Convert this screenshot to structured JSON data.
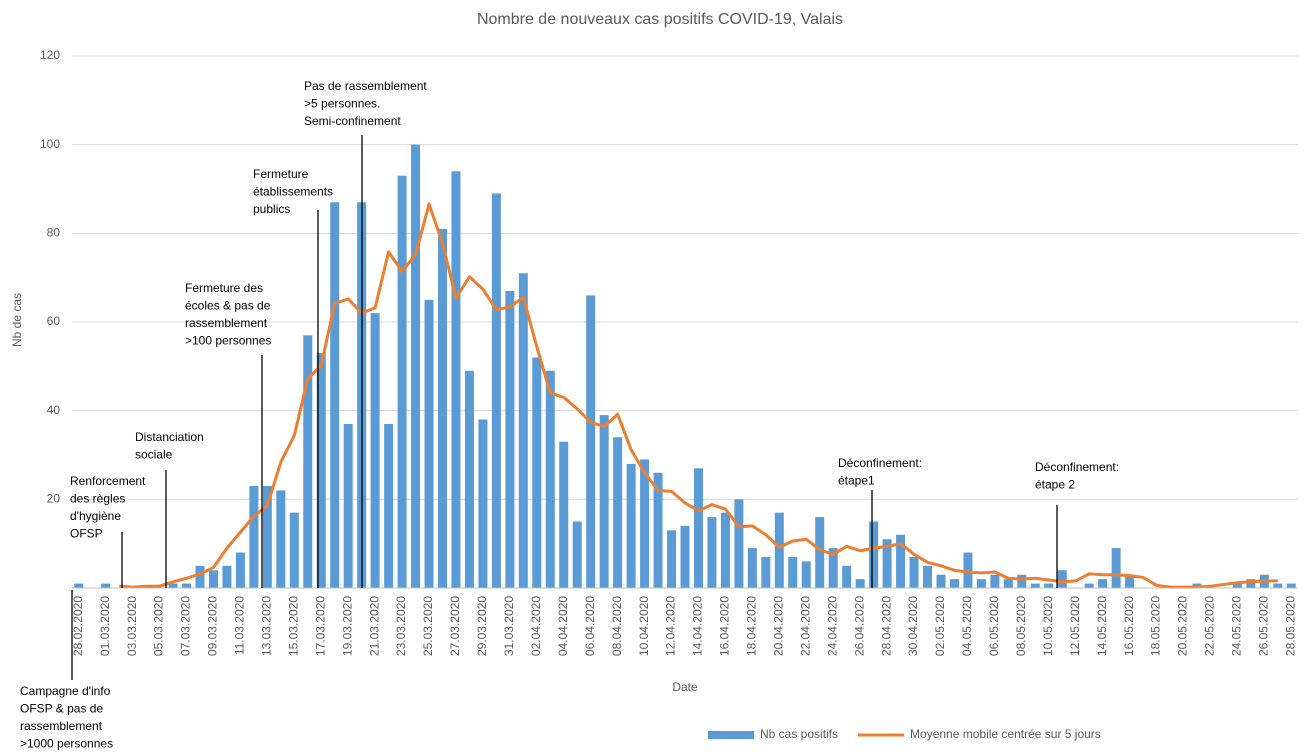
{
  "chart_data": {
    "type": "bar_line",
    "title": "Nombre de nouveaux cas positifs COVID-19, Valais",
    "x_label": "Date",
    "y_label": "Nb de cas",
    "categories": [
      "28.02.2020",
      null,
      "01.03.2020",
      null,
      "03.03.2020",
      null,
      "05.03.2020",
      null,
      "07.03.2020",
      null,
      "09.03.2020",
      null,
      "11.03.2020",
      null,
      "13.03.2020",
      null,
      "15.03.2020",
      null,
      "17.03.2020",
      null,
      "19.03.2020",
      null,
      "21.03.2020",
      null,
      "23.03.2020",
      null,
      "25.03.2020",
      null,
      "27.03.2020",
      null,
      "29.03.2020",
      null,
      "31.03.2020",
      null,
      "02.04.2020",
      null,
      "04.04.2020",
      null,
      "06.04.2020",
      null,
      "08.04.2020",
      null,
      "10.04.2020",
      null,
      "12.04.2020",
      null,
      "14.04.2020",
      null,
      "16.04.2020",
      null,
      "18.04.2020",
      null,
      "20.04.2020",
      null,
      "22.04.2020",
      null,
      "24.04.2020",
      null,
      "26.04.2020",
      null,
      "28.04.2020",
      null,
      "30.04.2020",
      null,
      "02.05.2020",
      null,
      "04.05.2020",
      null,
      "06.05.2020",
      null,
      "08.05.2020",
      null,
      "10.05.2020",
      null,
      "12.05.2020",
      null,
      "14.05.2020",
      null,
      "16.05.2020",
      null,
      "18.05.2020",
      null,
      "20.05.2020",
      null,
      "22.05.2020",
      null,
      "24.05.2020",
      null,
      "26.05.2020",
      null,
      "28.05.2020"
    ],
    "series": [
      {
        "name": "Nb cas positifs",
        "kind": "bar",
        "color": "#5b9bd5",
        "values": [
          1,
          0,
          1,
          0,
          0,
          0,
          0,
          1,
          1,
          5,
          4,
          5,
          8,
          23,
          23,
          22,
          17,
          57,
          53,
          87,
          37,
          87,
          62,
          37,
          93,
          100,
          65,
          81,
          94,
          49,
          38,
          89,
          67,
          71,
          52,
          49,
          33,
          15,
          66,
          39,
          34,
          28,
          29,
          26,
          13,
          14,
          27,
          16,
          17,
          20,
          9,
          7,
          17,
          7,
          6,
          16,
          9,
          5,
          2,
          15,
          11,
          12,
          7,
          5,
          3,
          2,
          8,
          2,
          3,
          2,
          3,
          1,
          1,
          4,
          0,
          1,
          2,
          9,
          3,
          0,
          0,
          0,
          0,
          1,
          0,
          0,
          1,
          2,
          3,
          1,
          1
        ]
      },
      {
        "name": "Moyenne mobile centrée sur 5 jours",
        "kind": "line",
        "color": "#ed7d31",
        "values": [
          null,
          null,
          null,
          0.4,
          0.2,
          0.4,
          0.4,
          1.4,
          2.2,
          3.2,
          4.6,
          9,
          12.6,
          16.2,
          18.6,
          28.4,
          34.4,
          47.2,
          50.2,
          64.2,
          65.2,
          62,
          63.2,
          75.8,
          71.4,
          75.2,
          86.6,
          77.8,
          65.4,
          70.2,
          67.4,
          62.8,
          63.4,
          65.6,
          54.4,
          44,
          43,
          40.4,
          37.4,
          36.4,
          39.2,
          31.2,
          26,
          22,
          21.8,
          19.2,
          17.4,
          18.8,
          17.8,
          13.8,
          14,
          12,
          9.2,
          10.6,
          11,
          8.6,
          7.6,
          9.4,
          8.4,
          9,
          9.4,
          10,
          7.6,
          5.8,
          5,
          4,
          3.6,
          3.4,
          3.6,
          2.2,
          2,
          2.2,
          1.8,
          1.4,
          1.6,
          3.2,
          3,
          3,
          2.8,
          2.4,
          0.6,
          0.2,
          0.2,
          0.2,
          0.4,
          0.8,
          1.2,
          1.4,
          1.6,
          1.6,
          null
        ]
      }
    ],
    "ylim": [
      0,
      120
    ],
    "yticks": [
      20,
      40,
      60,
      80,
      100,
      120
    ],
    "grid": true,
    "legend": "bottom",
    "annotations": [
      {
        "lines": [
          "Campagne d'info",
          "OFSP & pas de",
          "rassemblement",
          ">1000 personnes"
        ]
      },
      {
        "lines": [
          "Renforcement",
          "des règles",
          "d'hygiène",
          "OFSP"
        ]
      },
      {
        "lines": [
          "Distanciation",
          "sociale"
        ]
      },
      {
        "lines": [
          "Fermeture des",
          "écoles & pas de",
          "rassemblement",
          ">100 personnes"
        ]
      },
      {
        "lines": [
          "Fermeture",
          "établissements",
          "publics"
        ]
      },
      {
        "lines": [
          "Pas de rassemblement",
          ">5 personnes.",
          "Semi-confinement"
        ]
      },
      {
        "lines": [
          "Déconfinement:",
          "étape1"
        ]
      },
      {
        "lines": [
          "Déconfinement:",
          "étape 2"
        ]
      }
    ]
  }
}
